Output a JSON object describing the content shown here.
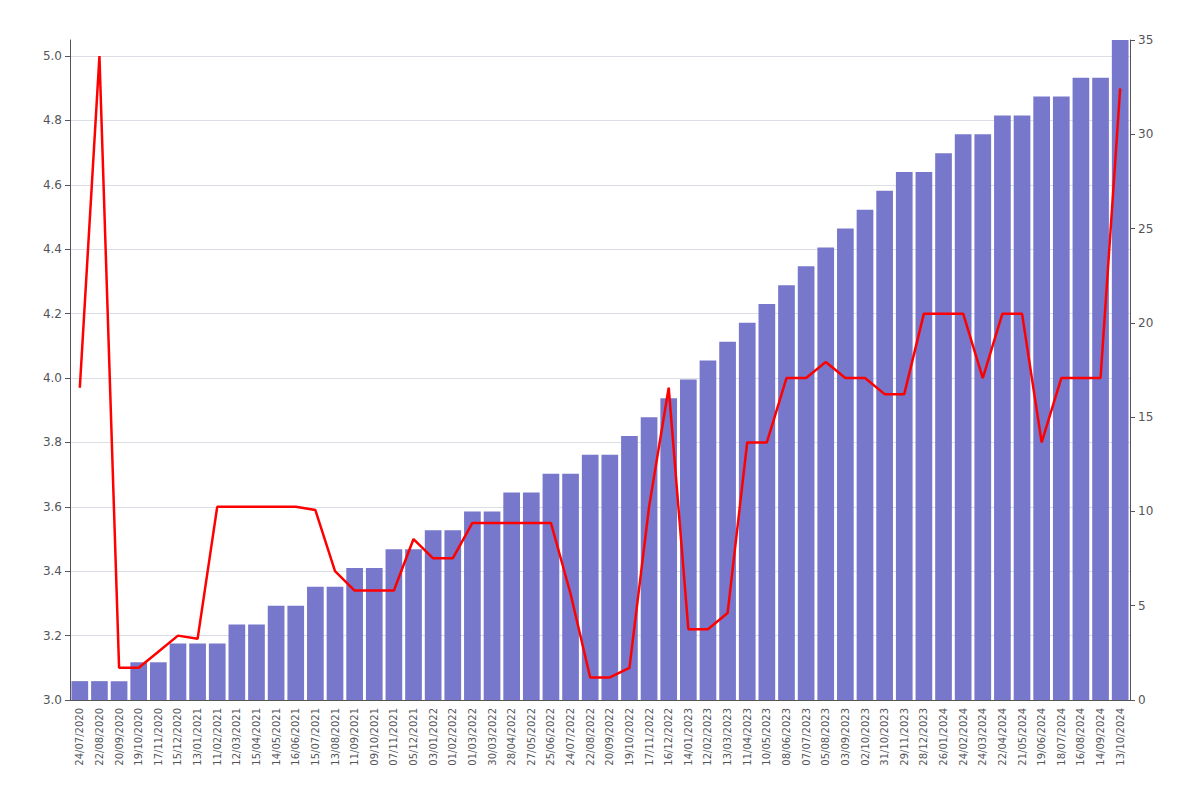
{
  "chart_data": {
    "type": "combo",
    "categories": [
      "24/07/2020",
      "22/08/2020",
      "20/09/2020",
      "19/10/2020",
      "17/11/2020",
      "15/12/2020",
      "13/01/2021",
      "11/02/2021",
      "12/03/2021",
      "15/04/2021",
      "14/05/2021",
      "16/06/2021",
      "15/07/2021",
      "13/08/2021",
      "11/09/2021",
      "09/10/2021",
      "07/11/2021",
      "05/12/2021",
      "03/01/2022",
      "01/02/2022",
      "01/03/2022",
      "30/03/2022",
      "28/04/2022",
      "27/05/2022",
      "25/06/2022",
      "24/07/2022",
      "22/08/2022",
      "20/09/2022",
      "19/10/2022",
      "17/11/2022",
      "16/12/2022",
      "14/01/2023",
      "12/02/2023",
      "13/03/2023",
      "11/04/2023",
      "10/05/2023",
      "08/06/2023",
      "07/07/2023",
      "05/08/2023",
      "03/09/2023",
      "02/10/2023",
      "31/10/2023",
      "29/11/2023",
      "28/12/2023",
      "26/01/2024",
      "24/02/2024",
      "24/03/2024",
      "22/04/2024",
      "21/05/2024",
      "19/06/2024",
      "18/07/2024",
      "16/08/2024",
      "14/09/2024",
      "13/10/2024"
    ],
    "series": [
      {
        "type": "bar",
        "axis": "y2",
        "color": "#7777cc",
        "values": [
          1,
          1,
          1,
          2,
          2,
          3,
          3,
          3,
          4,
          4,
          5,
          5,
          6,
          6,
          7,
          7,
          8,
          8,
          9,
          9,
          10,
          10,
          11,
          11,
          12,
          12,
          13,
          13,
          14,
          15,
          16,
          17,
          18,
          19,
          20,
          21,
          22,
          23,
          24,
          25,
          26,
          27,
          28,
          28,
          29,
          30,
          30,
          31,
          31,
          32,
          32,
          33,
          33,
          35
        ]
      },
      {
        "type": "line",
        "color": "#ff0000",
        "values": [
          3.97,
          5.0,
          3.1,
          3.1,
          3.15,
          3.2,
          3.19,
          3.6,
          3.6,
          3.6,
          3.6,
          3.6,
          3.59,
          3.4,
          3.34,
          3.34,
          3.34,
          3.5,
          3.44,
          3.44,
          3.55,
          3.55,
          3.55,
          3.55,
          3.55,
          3.33,
          3.07,
          3.07,
          3.1,
          3.6,
          3.97,
          3.22,
          3.22,
          3.27,
          3.8,
          3.8,
          4.0,
          4.0,
          4.05,
          4.0,
          4.0,
          3.95,
          3.95,
          4.2,
          4.2,
          4.2,
          4.0,
          4.2,
          4.2,
          3.8,
          4.0,
          4.0,
          4.0,
          4.9
        ]
      }
    ],
    "ylim": [
      3.0,
      5.05
    ],
    "yticks": [
      {
        "value": 3.0,
        "label": "3.0"
      },
      3.2,
      3.4,
      3.6,
      3.8,
      {
        "value": 4.0,
        "label": "4.0"
      },
      4.2,
      4.4,
      4.6,
      4.8,
      {
        "value": 5.0,
        "label": "5.0"
      }
    ],
    "y2lim": [
      0,
      35
    ],
    "y2ticks": [
      0,
      5,
      10,
      15,
      20,
      25,
      30,
      35
    ],
    "grid": true
  }
}
